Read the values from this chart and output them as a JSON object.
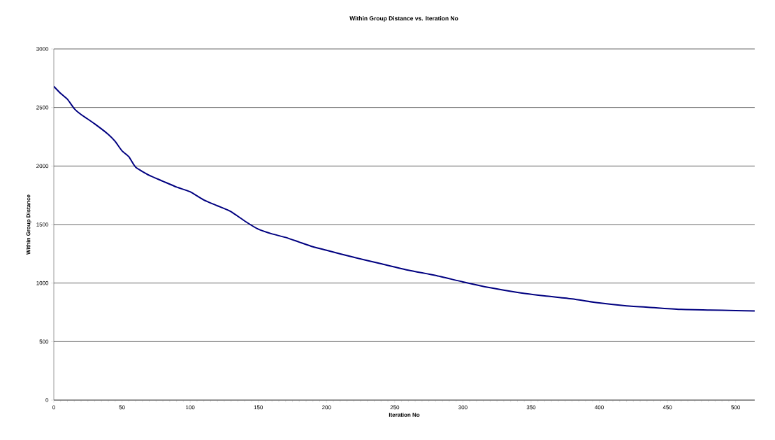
{
  "chart_data": {
    "type": "line",
    "title": "Within Group Distance vs. Iteration No",
    "xlabel": "Iteration No",
    "ylabel": "Within Group Distance",
    "x": [
      0,
      5,
      10,
      15,
      20,
      30,
      40,
      45,
      50,
      55,
      60,
      70,
      80,
      90,
      100,
      110,
      120,
      130,
      140,
      150,
      160,
      170,
      180,
      190,
      200,
      220,
      240,
      260,
      280,
      300,
      320,
      340,
      360,
      380,
      400,
      420,
      440,
      460,
      480,
      500,
      514
    ],
    "series": [
      {
        "color": "#000080",
        "values": [
          2680,
          2620,
          2570,
          2490,
          2440,
          2360,
          2270,
          2210,
          2130,
          2080,
          1990,
          1920,
          1870,
          1820,
          1780,
          1710,
          1660,
          1610,
          1530,
          1460,
          1420,
          1390,
          1350,
          1310,
          1280,
          1220,
          1165,
          1110,
          1065,
          1010,
          960,
          920,
          890,
          865,
          830,
          805,
          790,
          775,
          770,
          765,
          762
        ]
      }
    ],
    "xlim": [
      0,
      514
    ],
    "ylim": [
      0,
      3000
    ],
    "xticks": [
      0,
      50,
      100,
      150,
      200,
      250,
      300,
      350,
      400,
      450,
      500
    ],
    "yticks": [
      0,
      500,
      1000,
      1500,
      2000,
      2500,
      3000
    ],
    "grid": "y",
    "marker": "none",
    "line_style": "solid"
  }
}
